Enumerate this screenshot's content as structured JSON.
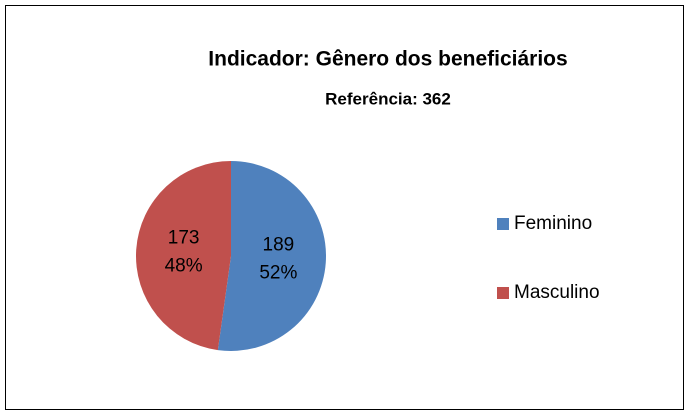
{
  "chart_data": {
    "type": "pie",
    "title": "Indicador: Gênero dos beneficiários",
    "subtitle": "Referência: 362",
    "categories": [
      "Feminino",
      "Masculino"
    ],
    "values": [
      189,
      173
    ],
    "percent_labels": [
      "52%",
      "48%"
    ],
    "colors": [
      "#4f81bd",
      "#c0504d"
    ],
    "legend": "right"
  }
}
